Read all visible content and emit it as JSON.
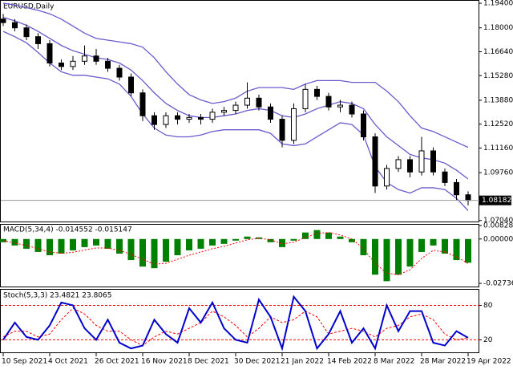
{
  "chart_data": [
    {
      "type": "candlestick",
      "title": "EURUSD,Daily",
      "categories": [
        "10 Sep 2021",
        null,
        null,
        null,
        "4 Oct 2021",
        null,
        null,
        null,
        "26 Oct 2021",
        null,
        null,
        null,
        "16 Nov 2021",
        null,
        null,
        null,
        "8 Dec 2021",
        null,
        null,
        null,
        "30 Dec 2021",
        null,
        null,
        null,
        "21 Jan 2022",
        null,
        null,
        null,
        "14 Feb 2022",
        null,
        null,
        null,
        "8 Mar 2022",
        null,
        null,
        null,
        "28 Mar 2022",
        null,
        null,
        null,
        "19 Apr 2022"
      ],
      "open": [
        1.185,
        1.183,
        1.18,
        1.175,
        1.171,
        1.16,
        1.158,
        1.161,
        1.164,
        1.161,
        1.157,
        1.152,
        1.143,
        1.13,
        1.125,
        1.13,
        1.128,
        1.129,
        1.128,
        1.132,
        1.133,
        1.136,
        1.14,
        1.135,
        1.128,
        1.116,
        1.134,
        1.145,
        1.141,
        1.135,
        1.136,
        1.131,
        1.118,
        1.09,
        1.1,
        1.105,
        1.098,
        1.11,
        1.098,
        1.092,
        1.085
      ],
      "high": [
        1.188,
        1.185,
        1.182,
        1.177,
        1.173,
        1.162,
        1.164,
        1.17,
        1.168,
        1.163,
        1.159,
        1.154,
        1.145,
        1.132,
        1.132,
        1.132,
        1.131,
        1.131,
        1.134,
        1.135,
        1.138,
        1.149,
        1.142,
        1.137,
        1.13,
        1.137,
        1.148,
        1.147,
        1.143,
        1.139,
        1.138,
        1.133,
        1.12,
        1.102,
        1.107,
        1.107,
        1.118,
        1.112,
        1.1,
        1.094,
        1.087
      ],
      "low": [
        1.181,
        1.178,
        1.173,
        1.168,
        1.158,
        1.156,
        1.156,
        1.159,
        1.159,
        1.155,
        1.15,
        1.141,
        1.127,
        1.122,
        1.123,
        1.125,
        1.126,
        1.125,
        1.126,
        1.13,
        1.131,
        1.134,
        1.133,
        1.126,
        1.112,
        1.114,
        1.132,
        1.139,
        1.133,
        1.132,
        1.129,
        1.116,
        1.086,
        1.088,
        1.098,
        1.095,
        1.096,
        1.096,
        1.09,
        1.082,
        1.079
      ],
      "close": [
        1.183,
        1.18,
        1.175,
        1.171,
        1.16,
        1.158,
        1.161,
        1.164,
        1.161,
        1.157,
        1.152,
        1.143,
        1.13,
        1.125,
        1.13,
        1.128,
        1.129,
        1.128,
        1.132,
        1.133,
        1.136,
        1.14,
        1.135,
        1.128,
        1.116,
        1.134,
        1.145,
        1.141,
        1.135,
        1.136,
        1.131,
        1.118,
        1.09,
        1.1,
        1.105,
        1.098,
        1.11,
        1.098,
        1.092,
        1.085,
        1.0818
      ],
      "bands_color": "#6a5acd",
      "bands_upper": [
        1.194,
        1.193,
        1.1915,
        1.19,
        1.188,
        1.185,
        1.181,
        1.177,
        1.174,
        1.173,
        1.172,
        1.171,
        1.169,
        1.163,
        1.155,
        1.148,
        1.142,
        1.139,
        1.137,
        1.138,
        1.14,
        1.144,
        1.146,
        1.146,
        1.146,
        1.145,
        1.148,
        1.15,
        1.15,
        1.15,
        1.149,
        1.149,
        1.149,
        1.144,
        1.138,
        1.13,
        1.123,
        1.121,
        1.118,
        1.115,
        1.112
      ],
      "bands_middle": [
        1.186,
        1.184,
        1.1815,
        1.178,
        1.174,
        1.17,
        1.167,
        1.165,
        1.163,
        1.162,
        1.16,
        1.156,
        1.15,
        1.143,
        1.137,
        1.133,
        1.13,
        1.129,
        1.129,
        1.13,
        1.131,
        1.133,
        1.134,
        1.133,
        1.13,
        1.129,
        1.131,
        1.134,
        1.136,
        1.138,
        1.137,
        1.134,
        1.125,
        1.118,
        1.113,
        1.108,
        1.106,
        1.105,
        1.103,
        1.099,
        1.094
      ],
      "bands_lower": [
        1.178,
        1.175,
        1.1715,
        1.166,
        1.16,
        1.155,
        1.153,
        1.153,
        1.152,
        1.151,
        1.148,
        1.141,
        1.131,
        1.123,
        1.119,
        1.118,
        1.118,
        1.119,
        1.121,
        1.122,
        1.122,
        1.122,
        1.122,
        1.12,
        1.114,
        1.113,
        1.114,
        1.118,
        1.122,
        1.126,
        1.125,
        1.119,
        1.101,
        1.092,
        1.088,
        1.086,
        1.089,
        1.089,
        1.088,
        1.083,
        1.076
      ],
      "current_price": 1.08182,
      "ylim": [
        1.0698,
        1.1954
      ],
      "yticks": [
        {
          "value": 1.194,
          "label": "1.19400"
        },
        {
          "value": 1.18,
          "label": "1.18000"
        },
        {
          "value": 1.1664,
          "label": "1.16640"
        },
        {
          "value": 1.1528,
          "label": "1.15280"
        },
        {
          "value": 1.1388,
          "label": "1.13880"
        },
        {
          "value": 1.1252,
          "label": "1.12520"
        },
        {
          "value": 1.1116,
          "label": "1.11160"
        },
        {
          "value": 1.0976,
          "label": "1.09760"
        },
        {
          "value": 1.0704,
          "label": "1.07040"
        }
      ]
    },
    {
      "type": "macd",
      "title": "MACD(5,34,4) -0.014552 -0.015147",
      "color": "#008000",
      "signal_color": "#ff0000",
      "values": [
        -0.002,
        -0.004,
        -0.006,
        -0.008,
        -0.01,
        -0.009,
        -0.007,
        -0.005,
        -0.004,
        -0.006,
        -0.009,
        -0.013,
        -0.017,
        -0.018,
        -0.014,
        -0.01,
        -0.007,
        -0.006,
        -0.004,
        -0.003,
        -0.001,
        0.0015,
        0.001,
        -0.002,
        -0.005,
        -0.001,
        0.004,
        0.0055,
        0.004,
        0.0015,
        -0.002,
        -0.01,
        -0.022,
        -0.026,
        -0.022,
        -0.017,
        -0.008,
        -0.004,
        -0.009,
        -0.013,
        -0.0146
      ],
      "signal": [
        -0.001,
        -0.0025,
        -0.004,
        -0.006,
        -0.008,
        -0.0088,
        -0.0082,
        -0.0068,
        -0.0055,
        -0.0056,
        -0.007,
        -0.0095,
        -0.0125,
        -0.0155,
        -0.015,
        -0.0125,
        -0.01,
        -0.008,
        -0.006,
        -0.0045,
        -0.0025,
        -0.0005,
        0.0005,
        -0.0005,
        -0.003,
        -0.002,
        0.001,
        0.0035,
        0.004,
        0.0025,
        0.0,
        -0.006,
        -0.015,
        -0.021,
        -0.022,
        -0.019,
        -0.012,
        -0.007,
        -0.008,
        -0.011,
        -0.0151
      ],
      "ylim": [
        -0.0293,
        0.0088
      ],
      "yticks": [
        {
          "value": 0.008282,
          "label": "0.008282"
        },
        {
          "value": 0,
          "label": "0.000000"
        },
        {
          "value": -0.02736,
          "label": "-0.02736"
        }
      ]
    },
    {
      "type": "stochastic",
      "title": "Stoch(5,3,3) 23.4821 23.8065",
      "color": "#0000cc",
      "signal_color": "#ff0000",
      "values": [
        20,
        50,
        25,
        20,
        45,
        85,
        80,
        40,
        20,
        55,
        15,
        5,
        10,
        55,
        30,
        15,
        75,
        50,
        85,
        40,
        20,
        15,
        90,
        60,
        5,
        95,
        70,
        5,
        30,
        70,
        15,
        40,
        5,
        80,
        35,
        70,
        70,
        15,
        10,
        35,
        23.4821
      ],
      "signal": [
        25,
        35,
        35,
        25,
        30,
        55,
        75,
        65,
        45,
        35,
        35,
        20,
        10,
        25,
        35,
        30,
        40,
        50,
        70,
        60,
        45,
        25,
        40,
        60,
        50,
        55,
        70,
        60,
        30,
        35,
        40,
        35,
        25,
        40,
        45,
        60,
        65,
        55,
        30,
        20,
        23.8065
      ],
      "ylim": [
        -1.8,
        107.2
      ],
      "yticks": [
        80,
        20
      ]
    }
  ]
}
